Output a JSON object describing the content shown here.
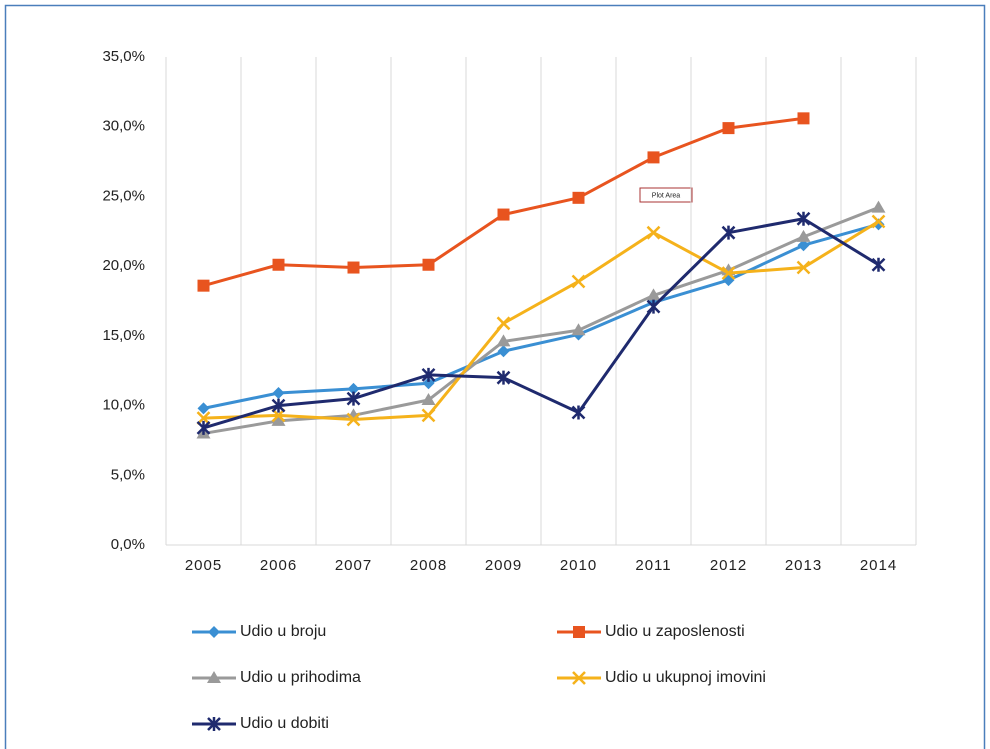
{
  "chart_data": {
    "type": "line",
    "categories": [
      "2005",
      "2006",
      "2007",
      "2008",
      "2009",
      "2010",
      "2011",
      "2012",
      "2013",
      "2014"
    ],
    "series": [
      {
        "name": "Udio u broju",
        "color": "#3a8fd3",
        "marker": "diamond",
        "values": [
          9.8,
          10.9,
          11.2,
          11.6,
          13.9,
          15.1,
          17.4,
          19.0,
          21.5,
          23.0
        ]
      },
      {
        "name": "Udio u zaposlenosti",
        "color": "#e8541f",
        "marker": "square",
        "values": [
          18.6,
          20.1,
          19.9,
          20.1,
          23.7,
          24.9,
          27.8,
          29.9,
          30.6,
          null
        ]
      },
      {
        "name": "Udio u prihodima",
        "color": "#9a9a9a",
        "marker": "triangle",
        "values": [
          8.0,
          8.9,
          9.3,
          10.4,
          14.6,
          15.4,
          17.9,
          19.7,
          22.1,
          24.2
        ]
      },
      {
        "name": "Udio u ukupnoj imovini",
        "color": "#f5b21b",
        "marker": "x",
        "values": [
          9.1,
          9.3,
          9.0,
          9.3,
          15.9,
          18.9,
          22.4,
          19.5,
          19.9,
          23.2
        ]
      },
      {
        "name": "Udio u dobiti",
        "color": "#1f2a6e",
        "marker": "star",
        "values": [
          8.4,
          10.0,
          10.5,
          12.2,
          12.0,
          9.5,
          17.1,
          22.4,
          23.4,
          20.1
        ]
      }
    ],
    "ylim": [
      0,
      35
    ],
    "yticks": [
      {
        "value": 0,
        "label": "0,0%"
      },
      {
        "value": 5,
        "label": "5,0%"
      },
      {
        "value": 10,
        "label": "10,0%"
      },
      {
        "value": 15,
        "label": "15,0%"
      },
      {
        "value": 20,
        "label": "20,0%"
      },
      {
        "value": 25,
        "label": "25,0%"
      },
      {
        "value": 30,
        "label": "30,0%"
      },
      {
        "value": 35,
        "label": "35,0%"
      }
    ],
    "grid": true,
    "annotation": "Plot Area"
  }
}
